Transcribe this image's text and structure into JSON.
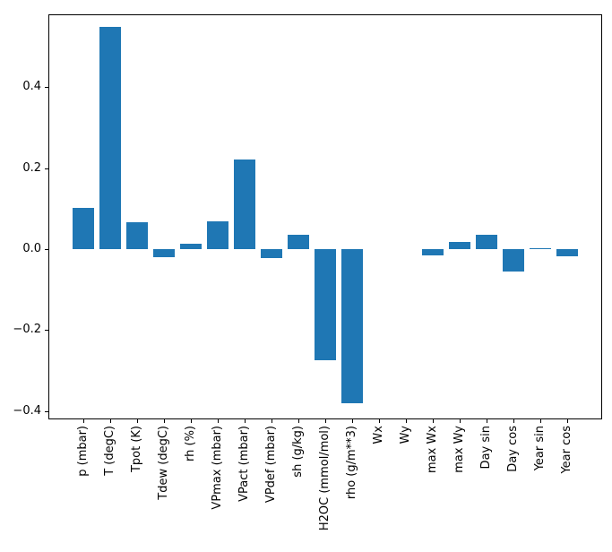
{
  "figure": {
    "background": "#ffffff",
    "axis_color": "#000000",
    "text_color": "#000000"
  },
  "chart_data": {
    "type": "bar",
    "title": "",
    "xlabel": "",
    "ylabel": "",
    "categories": [
      "p (mbar)",
      "T (degC)",
      "Tpot (K)",
      "Tdew (degC)",
      "rh (%)",
      "VPmax (mbar)",
      "VPact (mbar)",
      "VPdef (mbar)",
      "sh (g/kg)",
      "H2OC (mmol/mol)",
      "rho (g/m**3)",
      "Wx",
      "Wy",
      "max Wx",
      "max Wy",
      "Day sin",
      "Day cos",
      "Year sin",
      "Year cos"
    ],
    "values": [
      0.102,
      0.549,
      0.066,
      -0.02,
      0.013,
      0.069,
      0.221,
      -0.022,
      0.035,
      -0.275,
      -0.381,
      0.0,
      0.0,
      -0.016,
      0.018,
      0.035,
      -0.056,
      0.003,
      -0.018
    ],
    "bar_color": "#1f77b4",
    "yticks": {
      "labels": [
        "0.4",
        "0.2",
        "0.0",
        "−0.2",
        "−0.4"
      ],
      "values": [
        0.4,
        0.2,
        0.0,
        -0.2,
        -0.4
      ]
    },
    "ylim": [
      -0.421,
      0.58
    ],
    "xlim_slots": [
      -1.3,
      19.3
    ],
    "bar_width_frac": 0.8,
    "grid": false,
    "legend": false,
    "x_tick_label_rotation_deg": 90
  }
}
